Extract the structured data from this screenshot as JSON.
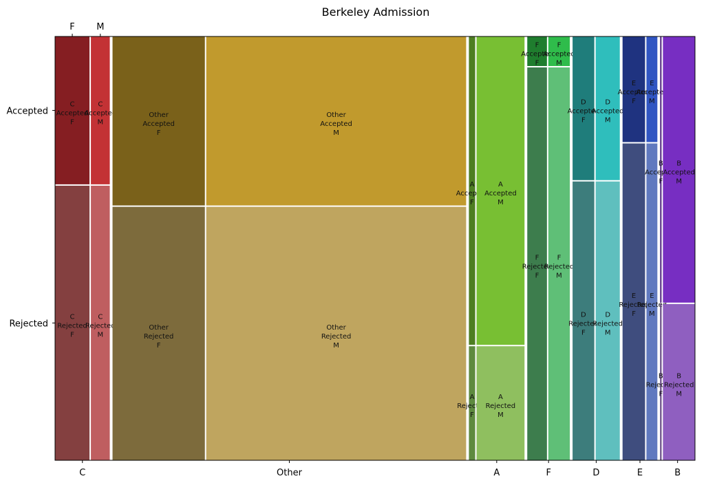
{
  "chart_data": {
    "type": "mosaic",
    "title": "Berkeley Admission",
    "x_variable_order": [
      "C",
      "Other",
      "A",
      "F",
      "D",
      "E",
      "B"
    ],
    "gender_order": [
      "F",
      "M"
    ],
    "admit_order": [
      "Accepted",
      "Rejected"
    ],
    "top_axis_labels": [
      "F",
      "M"
    ],
    "left_axis_labels": [
      "Accepted",
      "Rejected"
    ],
    "dept_totals": {
      "C": 918,
      "Other": 5932,
      "A": 933,
      "F": 714,
      "D": 792,
      "E": 584,
      "B": 585
    },
    "cells": [
      {
        "dept": "C",
        "gender": "F",
        "total": 593,
        "accepted_fraction": 0.35,
        "color": "#851e22",
        "rejected_color": "#844040",
        "label_accepted": [
          "C",
          "Accepted",
          "F"
        ],
        "label_rejected": [
          "C",
          "Rejected",
          "F"
        ]
      },
      {
        "dept": "C",
        "gender": "M",
        "total": 325,
        "accepted_fraction": 0.35,
        "color": "#c33235",
        "rejected_color": "#bf5e60",
        "label_accepted": [
          "C",
          "Accepted",
          "M"
        ],
        "label_rejected": [
          "C",
          "Rejected",
          "M"
        ]
      },
      {
        "dept": "Other",
        "gender": "F",
        "total": 1555,
        "accepted_fraction": 0.4,
        "color": "#7a611a",
        "rejected_color": "#7d6b3c",
        "label_accepted": [
          "Other",
          "Accepted",
          "F"
        ],
        "label_rejected": [
          "Other",
          "Rejected",
          "F"
        ]
      },
      {
        "dept": "Other",
        "gender": "M",
        "total": 4377,
        "accepted_fraction": 0.4,
        "color": "#c19a2d",
        "rejected_color": "#bfa55f",
        "label_accepted": [
          "Other",
          "Accepted",
          "M"
        ],
        "label_rejected": [
          "Other",
          "Rejected",
          "M"
        ]
      },
      {
        "dept": "A",
        "gender": "F",
        "total": 108,
        "accepted_fraction": 0.73,
        "color": "#4e7e22",
        "rejected_color": "#5e8a3f",
        "label_accepted": [
          "A",
          "Accepted",
          "F"
        ],
        "label_rejected": [
          "A",
          "Rejected",
          "F"
        ]
      },
      {
        "dept": "A",
        "gender": "M",
        "total": 825,
        "accepted_fraction": 0.73,
        "color": "#78bf33",
        "rejected_color": "#8fbf5f",
        "label_accepted": [
          "A",
          "Accepted",
          "M"
        ],
        "label_rejected": [
          "A",
          "Rejected",
          "M"
        ]
      },
      {
        "dept": "F",
        "gender": "F",
        "total": 341,
        "accepted_fraction": 0.07,
        "color": "#1f7d2e",
        "rejected_color": "#3d7d4d",
        "label_accepted": [
          "F",
          "Accepted",
          "F"
        ],
        "label_rejected": [
          "F",
          "Rejected",
          "F"
        ]
      },
      {
        "dept": "F",
        "gender": "M",
        "total": 373,
        "accepted_fraction": 0.07,
        "color": "#2fbc4b",
        "rejected_color": "#5fbf77",
        "label_accepted": [
          "F",
          "Accepted",
          "M"
        ],
        "label_rejected": [
          "F",
          "Rejected",
          "M"
        ]
      },
      {
        "dept": "D",
        "gender": "F",
        "total": 375,
        "accepted_fraction": 0.34,
        "color": "#1f7d7b",
        "rejected_color": "#3d7d7c",
        "label_accepted": [
          "D",
          "Accepted",
          "F"
        ],
        "label_rejected": [
          "D",
          "Rejected",
          "F"
        ]
      },
      {
        "dept": "D",
        "gender": "M",
        "total": 417,
        "accepted_fraction": 0.34,
        "color": "#2fbebc",
        "rejected_color": "#5fbfbe",
        "label_accepted": [
          "D",
          "Accepted",
          "M"
        ],
        "label_rejected": [
          "D",
          "Rejected",
          "M"
        ]
      },
      {
        "dept": "E",
        "gender": "F",
        "total": 393,
        "accepted_fraction": 0.25,
        "color": "#1f3380",
        "rejected_color": "#3f4d7e",
        "label_accepted": [
          "E",
          "Accepted",
          "F"
        ],
        "label_rejected": [
          "E",
          "Rejected",
          "F"
        ]
      },
      {
        "dept": "E",
        "gender": "M",
        "total": 191,
        "accepted_fraction": 0.25,
        "color": "#3055c2",
        "rejected_color": "#6079bf",
        "label_accepted": [
          "E",
          "Accepted",
          "M"
        ],
        "label_rejected": [
          "E",
          "Rejected",
          "M"
        ]
      },
      {
        "dept": "B",
        "gender": "F",
        "total": 25,
        "accepted_fraction": 0.63,
        "color": "#4e227e",
        "rejected_color": "#5d3f7d",
        "label_accepted": [
          "B",
          "Accepted",
          "F"
        ],
        "label_rejected": [
          "B",
          "Rejected",
          "F"
        ]
      },
      {
        "dept": "B",
        "gender": "M",
        "total": 560,
        "accepted_fraction": 0.63,
        "color": "#772ec2",
        "rejected_color": "#8f5fc0",
        "label_accepted": [
          "B",
          "Accepted",
          "M"
        ],
        "label_rejected": [
          "B",
          "Rejected",
          "M"
        ]
      }
    ]
  }
}
